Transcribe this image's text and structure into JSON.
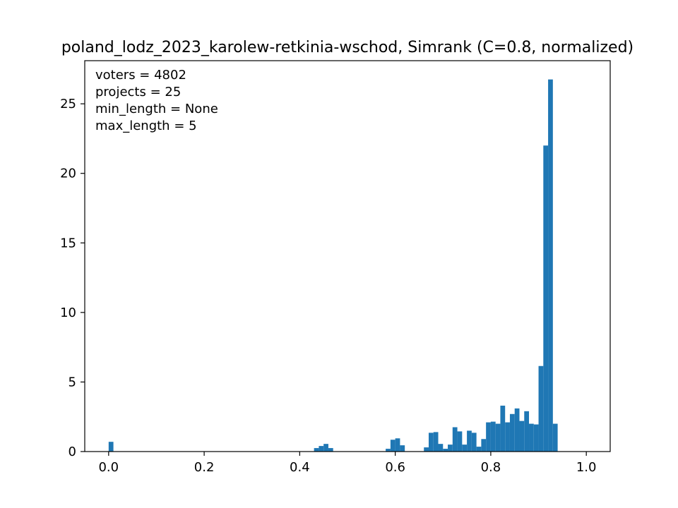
{
  "chart_data": {
    "type": "bar",
    "title": "poland_lodz_2023_karolew-retkinia-wschod, Simrank (C=0.8, normalized)",
    "xlabel": "",
    "ylabel": "",
    "xlim": [
      -0.05,
      1.05
    ],
    "ylim": [
      0,
      28.1
    ],
    "x_ticks": [
      0.0,
      0.2,
      0.4,
      0.6,
      0.8,
      1.0
    ],
    "x_tick_labels": [
      "0.0",
      "0.2",
      "0.4",
      "0.6",
      "0.8",
      "1.0"
    ],
    "y_ticks": [
      0,
      5,
      10,
      15,
      20,
      25
    ],
    "y_tick_labels": [
      "0",
      "5",
      "10",
      "15",
      "20",
      "25"
    ],
    "grid": false,
    "bar_color": "#1f77b4",
    "bin_width": 0.01,
    "annotations": [
      "voters = 4802",
      "projects = 25",
      "min_length = None",
      "max_length = 5"
    ],
    "bins": [
      {
        "x": 0.0,
        "y": 0.7
      },
      {
        "x": 0.43,
        "y": 0.25
      },
      {
        "x": 0.44,
        "y": 0.4
      },
      {
        "x": 0.45,
        "y": 0.55
      },
      {
        "x": 0.46,
        "y": 0.25
      },
      {
        "x": 0.58,
        "y": 0.2
      },
      {
        "x": 0.59,
        "y": 0.85
      },
      {
        "x": 0.6,
        "y": 0.95
      },
      {
        "x": 0.61,
        "y": 0.45
      },
      {
        "x": 0.66,
        "y": 0.3
      },
      {
        "x": 0.67,
        "y": 1.35
      },
      {
        "x": 0.68,
        "y": 1.4
      },
      {
        "x": 0.69,
        "y": 0.55
      },
      {
        "x": 0.7,
        "y": 0.2
      },
      {
        "x": 0.71,
        "y": 0.5
      },
      {
        "x": 0.72,
        "y": 1.75
      },
      {
        "x": 0.73,
        "y": 1.45
      },
      {
        "x": 0.74,
        "y": 0.5
      },
      {
        "x": 0.75,
        "y": 1.5
      },
      {
        "x": 0.76,
        "y": 1.35
      },
      {
        "x": 0.77,
        "y": 0.35
      },
      {
        "x": 0.78,
        "y": 0.9
      },
      {
        "x": 0.79,
        "y": 2.1
      },
      {
        "x": 0.8,
        "y": 2.15
      },
      {
        "x": 0.81,
        "y": 2.0
      },
      {
        "x": 0.82,
        "y": 3.3
      },
      {
        "x": 0.83,
        "y": 2.1
      },
      {
        "x": 0.84,
        "y": 2.7
      },
      {
        "x": 0.85,
        "y": 3.1
      },
      {
        "x": 0.86,
        "y": 2.2
      },
      {
        "x": 0.87,
        "y": 2.9
      },
      {
        "x": 0.88,
        "y": 2.0
      },
      {
        "x": 0.89,
        "y": 1.95
      },
      {
        "x": 0.9,
        "y": 6.15
      },
      {
        "x": 0.91,
        "y": 22.0
      },
      {
        "x": 0.92,
        "y": 26.75
      },
      {
        "x": 0.93,
        "y": 2.0
      }
    ]
  }
}
